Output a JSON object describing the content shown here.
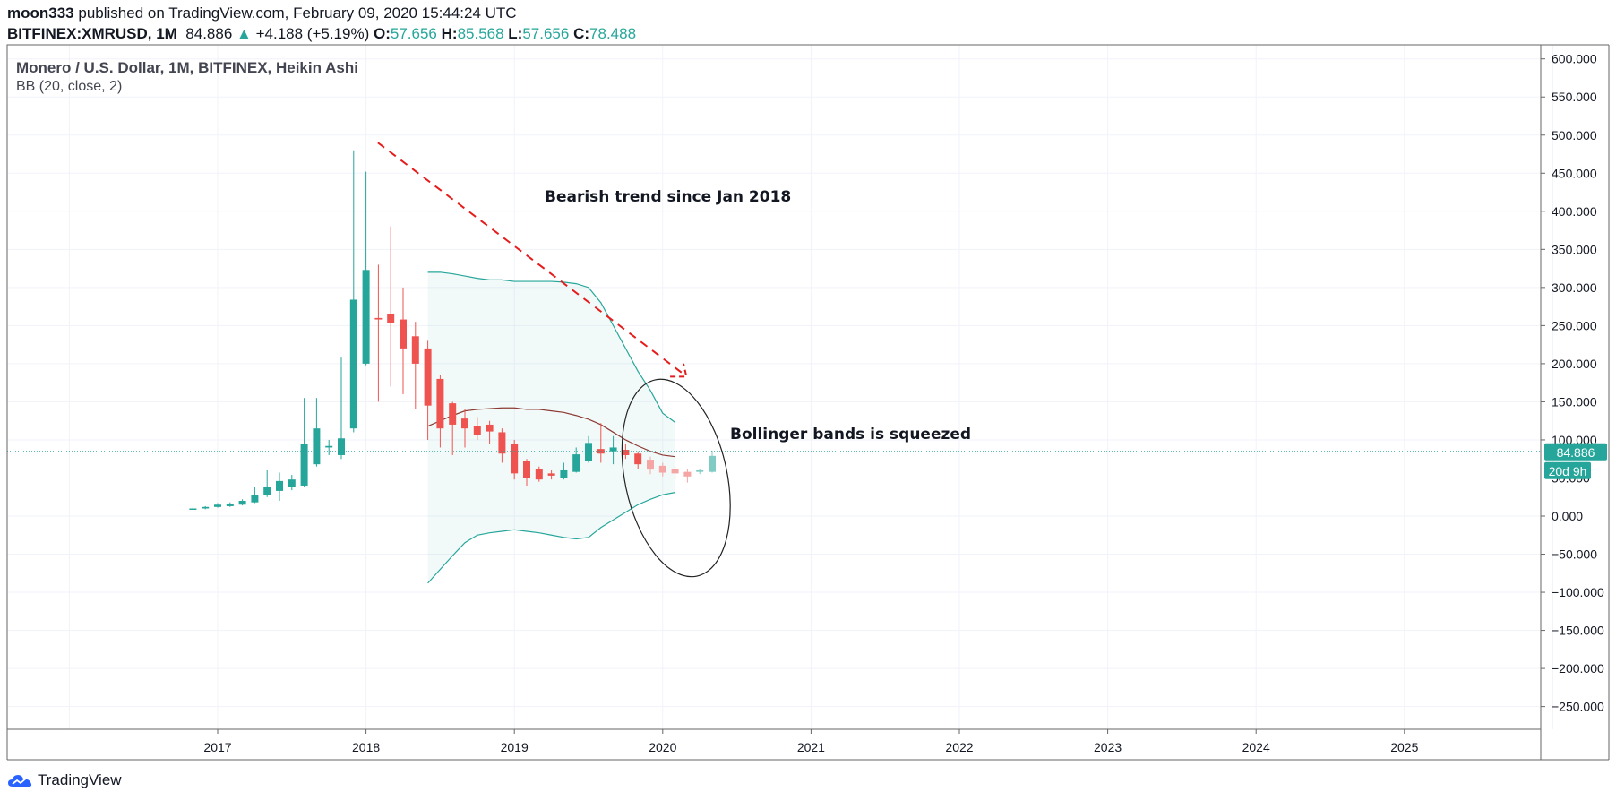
{
  "header": {
    "publisher": "moon333",
    "published_text": " published on TradingView.com, February 09, 2020 15:44:24 UTC",
    "symbol": "BITFINEX:XMRUSD, 1M",
    "last": "84.886",
    "change": "+4.188 (+5.19%)",
    "o_label": "O:",
    "o_value": "57.656",
    "h_label": "H:",
    "h_value": "85.568",
    "l_label": "L:",
    "l_value": "57.656",
    "c_label": "C:",
    "c_value": "78.488"
  },
  "legend": {
    "title": "Monero / U.S. Dollar, 1M, BITFINEX, Heikin Ashi",
    "indicator": "BB (20, close, 2)"
  },
  "price_badge": {
    "value": "84.886",
    "countdown": "20d 9h"
  },
  "footer": {
    "brand": "TradingView"
  },
  "colors": {
    "up": "#26a69a",
    "down": "#ef5350",
    "up_faded": "#80cbc4",
    "down_faded": "#f5a5a3",
    "band": "#26a69a",
    "basis": "#8d3a34",
    "trend": "#e51c1c"
  },
  "chart_data": {
    "type": "candlestick",
    "title": "Monero / U.S. Dollar, 1M, BITFINEX, Heikin Ashi",
    "ylim": [
      -280,
      620
    ],
    "y_ticks": [
      "600.000",
      "550.000",
      "500.000",
      "450.000",
      "400.000",
      "350.000",
      "300.000",
      "250.000",
      "200.000",
      "150.000",
      "100.000",
      "50.000",
      "0.000",
      "−50.000",
      "−100.000",
      "−150.000",
      "−200.000",
      "−250.000"
    ],
    "y_tick_values": [
      600,
      550,
      500,
      450,
      400,
      350,
      300,
      250,
      200,
      150,
      100,
      50,
      0,
      -50,
      -100,
      -150,
      -200,
      -250
    ],
    "x_ticks": [
      "2017",
      "2018",
      "2019",
      "2020",
      "2021",
      "2022",
      "2023",
      "2024",
      "2025"
    ],
    "x_tick_years": [
      2017,
      2018,
      2019,
      2020,
      2021,
      2022,
      2023,
      2024,
      2025
    ],
    "candles_start": "2016-11",
    "candles": [
      {
        "o": 10,
        "h": 11,
        "l": 9,
        "c": 10
      },
      {
        "o": 10,
        "h": 13,
        "l": 9,
        "c": 12
      },
      {
        "o": 12,
        "h": 17,
        "l": 11,
        "c": 15
      },
      {
        "o": 13,
        "h": 18,
        "l": 12,
        "c": 16
      },
      {
        "o": 15,
        "h": 22,
        "l": 14,
        "c": 20
      },
      {
        "o": 18,
        "h": 38,
        "l": 17,
        "c": 28
      },
      {
        "o": 28,
        "h": 60,
        "l": 25,
        "c": 38
      },
      {
        "o": 33,
        "h": 57,
        "l": 20,
        "c": 46
      },
      {
        "o": 38,
        "h": 54,
        "l": 34,
        "c": 48
      },
      {
        "o": 40,
        "h": 155,
        "l": 38,
        "c": 95
      },
      {
        "o": 68,
        "h": 155,
        "l": 65,
        "c": 115
      },
      {
        "o": 90,
        "h": 100,
        "l": 80,
        "c": 92
      },
      {
        "o": 80,
        "h": 208,
        "l": 75,
        "c": 102
      },
      {
        "o": 115,
        "h": 480,
        "l": 110,
        "c": 284
      },
      {
        "o": 200,
        "h": 452,
        "l": 198,
        "c": 323
      },
      {
        "o": 260,
        "h": 330,
        "l": 150,
        "c": 258
      },
      {
        "o": 265,
        "h": 380,
        "l": 170,
        "c": 253
      },
      {
        "o": 258,
        "h": 300,
        "l": 160,
        "c": 220
      },
      {
        "o": 236,
        "h": 255,
        "l": 140,
        "c": 200
      },
      {
        "o": 220,
        "h": 230,
        "l": 100,
        "c": 145
      },
      {
        "o": 180,
        "h": 185,
        "l": 90,
        "c": 115
      },
      {
        "o": 148,
        "h": 150,
        "l": 80,
        "c": 120
      },
      {
        "o": 128,
        "h": 140,
        "l": 90,
        "c": 115
      },
      {
        "o": 118,
        "h": 130,
        "l": 100,
        "c": 107
      },
      {
        "o": 120,
        "h": 125,
        "l": 95,
        "c": 111
      },
      {
        "o": 110,
        "h": 115,
        "l": 70,
        "c": 82
      },
      {
        "o": 95,
        "h": 100,
        "l": 48,
        "c": 56
      },
      {
        "o": 72,
        "h": 75,
        "l": 40,
        "c": 50
      },
      {
        "o": 62,
        "h": 65,
        "l": 45,
        "c": 48
      },
      {
        "o": 56,
        "h": 60,
        "l": 48,
        "c": 53
      },
      {
        "o": 50,
        "h": 70,
        "l": 48,
        "c": 60
      },
      {
        "o": 58,
        "h": 90,
        "l": 57,
        "c": 81
      },
      {
        "o": 72,
        "h": 105,
        "l": 70,
        "c": 96
      },
      {
        "o": 88,
        "h": 122,
        "l": 70,
        "c": 82
      },
      {
        "o": 85,
        "h": 105,
        "l": 68,
        "c": 90
      },
      {
        "o": 87,
        "h": 95,
        "l": 75,
        "c": 80
      },
      {
        "o": 82,
        "h": 85,
        "l": 62,
        "c": 68
      },
      {
        "o": 74,
        "h": 78,
        "l": 55,
        "c": 61
      },
      {
        "o": 66,
        "h": 70,
        "l": 52,
        "c": 57
      },
      {
        "o": 62,
        "h": 65,
        "l": 48,
        "c": 56
      },
      {
        "o": 58,
        "h": 62,
        "l": 44,
        "c": 52
      },
      {
        "o": 58,
        "h": 62,
        "l": 55,
        "c": 60
      },
      {
        "o": 58,
        "h": 86,
        "l": 57,
        "c": 79
      }
    ],
    "bb_start_index": 19,
    "bb_upper": [
      320,
      320,
      318,
      315,
      312,
      310,
      310,
      308,
      308,
      308,
      308,
      307,
      305,
      300,
      280,
      250,
      220,
      190,
      165,
      135,
      123
    ],
    "bb_basis": [
      118,
      125,
      132,
      138,
      140,
      141,
      142,
      142,
      140,
      140,
      138,
      136,
      132,
      127,
      120,
      110,
      100,
      92,
      85,
      80,
      78
    ],
    "bb_lower": [
      -88,
      -70,
      -52,
      -35,
      -25,
      -22,
      -20,
      -18,
      -20,
      -22,
      -25,
      -28,
      -30,
      -28,
      -15,
      -5,
      5,
      15,
      22,
      28,
      31
    ],
    "last_price": 84.886,
    "annotations": [
      {
        "text": "Bearish trend since Jan 2018",
        "kind": "text"
      },
      {
        "text": "Bollinger bands is squeezed",
        "kind": "text"
      }
    ]
  }
}
